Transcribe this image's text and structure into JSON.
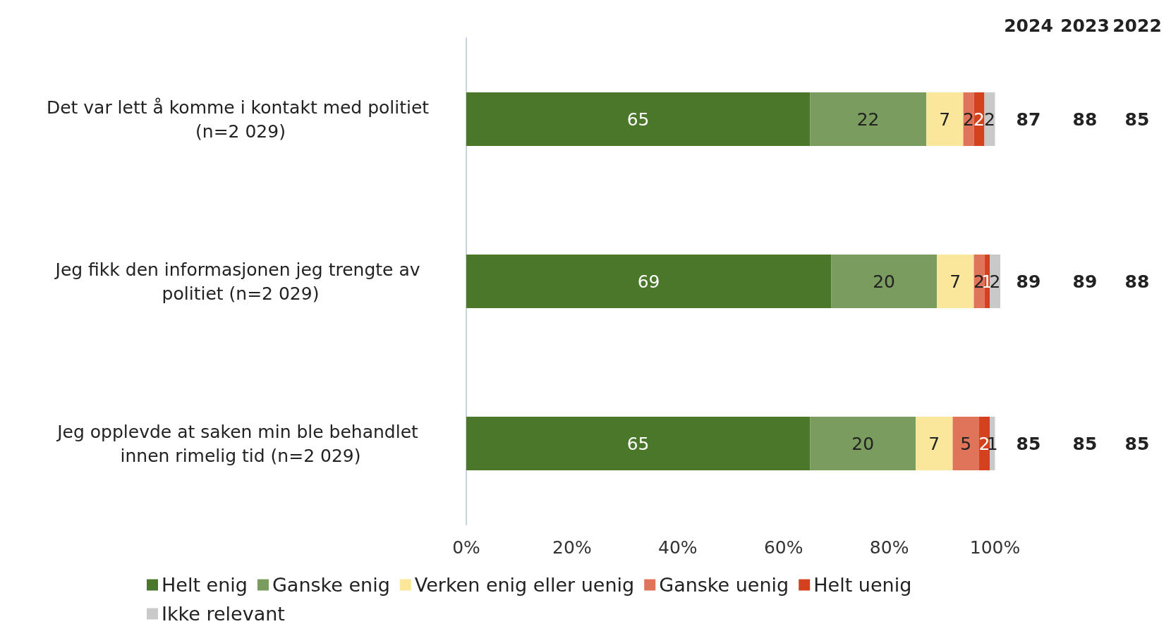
{
  "chart_data": {
    "type": "bar",
    "orientation": "horizontal",
    "stacked": true,
    "data_labels": true,
    "grid": false,
    "legend": "bottom",
    "categories": [
      "Det var lett å komme i kontakt med politiet (n=2 029)",
      "Jeg fikk den informasjonen jeg trengte av politiet (n=2 029)",
      "Jeg opplevde at saken min ble behandlet innen rimelig tid (n=2 029)"
    ],
    "series": [
      {
        "name": "Helt enig",
        "color": "#4a7729",
        "values": [
          65,
          69,
          65
        ]
      },
      {
        "name": "Ganske enig",
        "color": "#7a9c5e",
        "values": [
          22,
          20,
          20
        ]
      },
      {
        "name": "Verken enig eller uenig",
        "color": "#fbe79b",
        "values": [
          7,
          7,
          7
        ]
      },
      {
        "name": "Ganske uenig",
        "color": "#e0745a",
        "values": [
          2,
          2,
          5
        ]
      },
      {
        "name": "Helt uenig",
        "color": "#d3411f",
        "values": [
          2,
          1,
          2
        ]
      },
      {
        "name": "Ikke relevant",
        "color": "#c9c9c9",
        "values": [
          2,
          2,
          1
        ]
      }
    ],
    "xlim": [
      0,
      101
    ],
    "xticks": [
      {
        "value": 0,
        "label": "0%"
      },
      {
        "value": 20,
        "label": "20%"
      },
      {
        "value": 40,
        "label": "40%"
      },
      {
        "value": 60,
        "label": "60%"
      },
      {
        "value": 80,
        "label": "80%"
      },
      {
        "value": 100,
        "label": "100%"
      }
    ],
    "annotations": [
      "2024",
      "2023",
      "2022",
      "87",
      "88",
      "85",
      "89",
      "89",
      "88",
      "85",
      "85",
      "85"
    ]
  }
}
